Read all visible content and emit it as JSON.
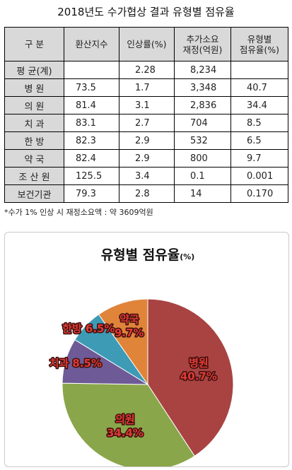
{
  "title": "2018년도 수가협상 결과 유형별 점유율",
  "table": {
    "headers": [
      "구 분",
      "환산지수",
      "인상률(%)",
      "추가소요\n재정(억원)",
      "유형별\n점유율(%)"
    ],
    "rows": [
      [
        "평 균(계)",
        "",
        "2.28",
        "8,234",
        ""
      ],
      [
        "병 원",
        "73.5",
        "1.7",
        "3,348",
        "40.7"
      ],
      [
        "의 원",
        "81.4",
        "3.1",
        "2,836",
        "34.4"
      ],
      [
        "치 과",
        "83.1",
        "2.7",
        "704",
        "8.5"
      ],
      [
        "한 방",
        "82.3",
        "2.9",
        "532",
        "6.5"
      ],
      [
        "약 국",
        "82.4",
        "2.9",
        "800",
        "9.7"
      ],
      [
        "조 산 원",
        "125.5",
        "3.4",
        "0.1",
        "0.001"
      ],
      [
        "보건기관",
        "79.3",
        "2.8",
        "14",
        "0.170"
      ]
    ]
  },
  "footnote": "*수가 1% 인상 시 재정소요액 : 약 3609억원",
  "chart_data": {
    "type": "pie",
    "title": "유형별 점유율",
    "title_unit": "(%)",
    "slices": [
      {
        "label": "병원",
        "value": 40.7,
        "value_text": "40.7%",
        "color": "#a84342"
      },
      {
        "label": "의원",
        "value": 34.4,
        "value_text": "34.4%",
        "color": "#8aa64a"
      },
      {
        "label": "치과",
        "value": 8.5,
        "value_text": "8.5%",
        "color": "#6e5a96"
      },
      {
        "label": "한방",
        "value": 6.5,
        "value_text": "6.5%",
        "color": "#3e9bb5"
      },
      {
        "label": "약국",
        "value": 9.7,
        "value_text": "9.7%",
        "color": "#e0843a"
      }
    ],
    "label_text_color": "#e23a33"
  }
}
